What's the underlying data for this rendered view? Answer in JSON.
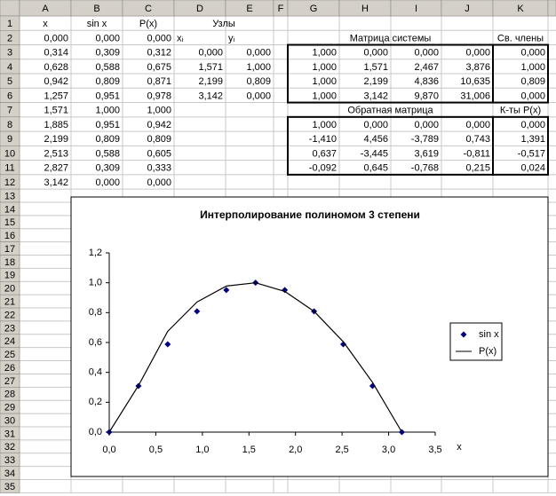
{
  "column_headers": [
    "A",
    "B",
    "C",
    "D",
    "E",
    "F",
    "G",
    "H",
    "I",
    "J",
    "K"
  ],
  "row_headers": [
    1,
    2,
    3,
    4,
    5,
    6,
    7,
    8,
    9,
    10,
    11,
    12,
    13,
    14,
    15,
    16,
    17,
    18,
    19,
    20,
    21,
    22,
    23,
    24,
    25,
    26,
    27,
    28,
    29,
    30,
    31,
    32,
    33,
    34,
    35
  ],
  "table": {
    "rows": [
      [
        "x",
        "sin x",
        "P(x)",
        "Узлы",
        null,
        null,
        null,
        null,
        null,
        null,
        null
      ],
      [
        "0,000",
        "0,000",
        "0,000",
        "xᵢ",
        "yᵢ",
        null,
        "Матрица системы",
        null,
        null,
        null,
        "Св. члены"
      ],
      [
        "0,314",
        "0,309",
        "0,312",
        "0,000",
        "0,000",
        null,
        "1,000",
        "0,000",
        "0,000",
        "0,000",
        "0,000"
      ],
      [
        "0,628",
        "0,588",
        "0,675",
        "1,571",
        "1,000",
        null,
        "1,000",
        "1,571",
        "2,467",
        "3,876",
        "1,000"
      ],
      [
        "0,942",
        "0,809",
        "0,871",
        "2,199",
        "0,809",
        null,
        "1,000",
        "2,199",
        "4,836",
        "10,635",
        "0,809"
      ],
      [
        "1,257",
        "0,951",
        "0,978",
        "3,142",
        "0,000",
        null,
        "1,000",
        "3,142",
        "9,870",
        "31,006",
        "0,000"
      ],
      [
        "1,571",
        "1,000",
        "1,000",
        null,
        null,
        null,
        "Обратная матрица",
        null,
        null,
        null,
        "К-ты P(x)"
      ],
      [
        "1,885",
        "0,951",
        "0,942",
        null,
        null,
        null,
        "1,000",
        "0,000",
        "0,000",
        "0,000",
        "0,000"
      ],
      [
        "2,199",
        "0,809",
        "0,809",
        null,
        null,
        null,
        "-1,410",
        "4,456",
        "-3,789",
        "0,743",
        "1,391"
      ],
      [
        "2,513",
        "0,588",
        "0,605",
        null,
        null,
        null,
        "0,637",
        "-3,445",
        "3,619",
        "-0,811",
        "-0,517"
      ],
      [
        "2,827",
        "0,309",
        "0,333",
        null,
        null,
        null,
        "-0,092",
        "0,645",
        "-0,768",
        "0,215",
        "0,024"
      ],
      [
        "3,142",
        "0,000",
        "0,000",
        null,
        null,
        null,
        null,
        null,
        null,
        null,
        null
      ]
    ]
  },
  "chart_data": {
    "type": "scatter",
    "title": "Интерполирование полиномом 3 степени",
    "x_label": "x",
    "x": [
      0,
      0.314,
      0.628,
      0.942,
      1.257,
      1.571,
      1.885,
      2.199,
      2.513,
      2.827,
      3.142
    ],
    "series": [
      {
        "name": "sin x",
        "color": "#000080",
        "mode": "markers",
        "values": [
          0,
          0.309,
          0.588,
          0.809,
          0.951,
          1.0,
          0.951,
          0.809,
          0.588,
          0.309,
          0.0
        ]
      },
      {
        "name": "P(x)",
        "color": "#000000",
        "mode": "line",
        "values": [
          0,
          0.312,
          0.675,
          0.871,
          0.978,
          1.0,
          0.942,
          0.809,
          0.605,
          0.333,
          0.0
        ]
      }
    ],
    "xlim": [
      0,
      3.5
    ],
    "xticks": [
      {
        "value": 0,
        "label": "0,0"
      },
      {
        "value": 0.5,
        "label": "0,5"
      },
      {
        "value": 1,
        "label": "1,0"
      },
      {
        "value": 1.5,
        "label": "1,5"
      },
      {
        "value": 2,
        "label": "2,0"
      },
      {
        "value": 2.5,
        "label": "2,5"
      },
      {
        "value": 3,
        "label": "3,0"
      },
      {
        "value": 3.5,
        "label": "3,5"
      }
    ],
    "ylim": [
      0,
      1.2
    ],
    "yticks": [
      {
        "value": 0,
        "label": "0,0"
      },
      {
        "value": 0.2,
        "label": "0,2"
      },
      {
        "value": 0.4,
        "label": "0,4"
      },
      {
        "value": 0.6,
        "label": "0,6"
      },
      {
        "value": 0.8,
        "label": "0,8"
      },
      {
        "value": 1,
        "label": "1,0"
      },
      {
        "value": 1.2,
        "label": "1,2"
      }
    ],
    "legend": "right",
    "grid": false
  }
}
